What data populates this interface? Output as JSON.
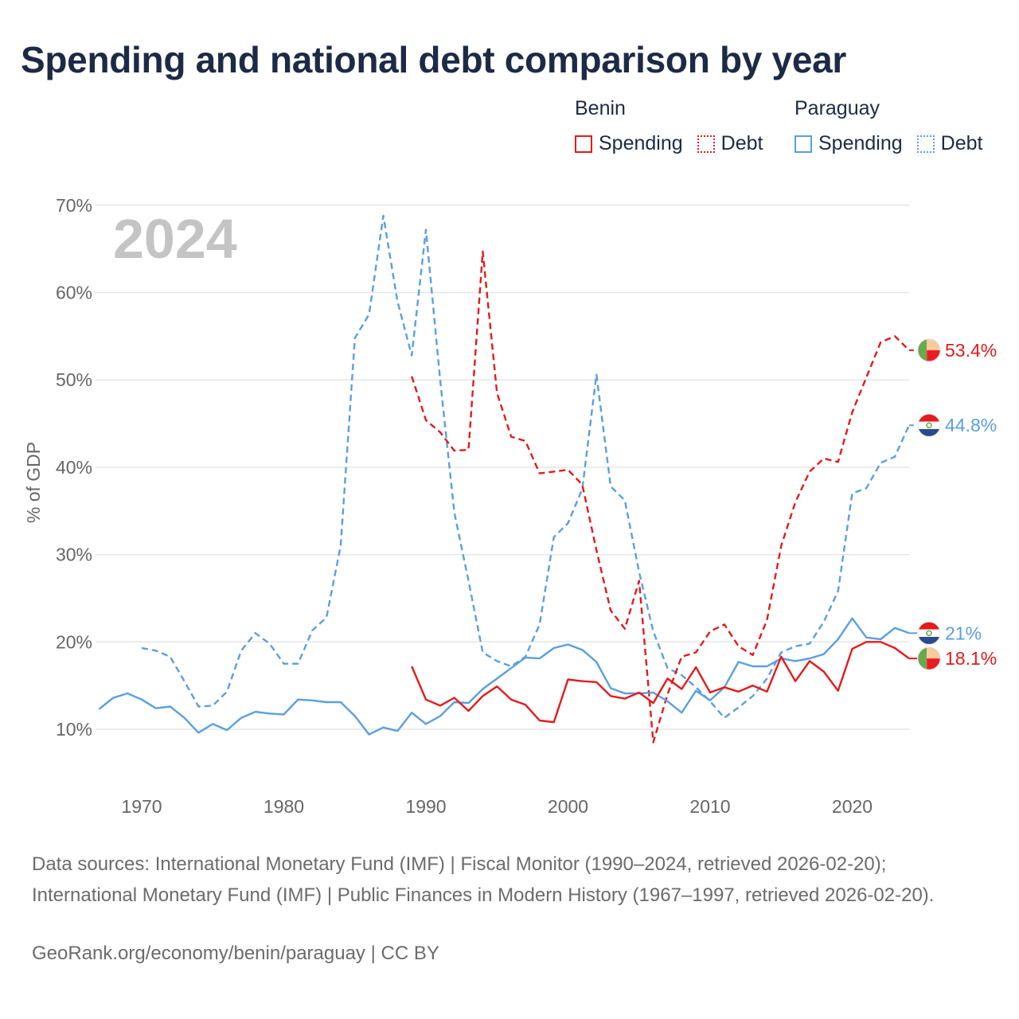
{
  "title": "Spending and national debt comparison by year",
  "legend": {
    "groups": [
      {
        "name": "Benin",
        "items": [
          {
            "label": "Spending",
            "style": "solid",
            "color": "#e41a1c"
          },
          {
            "label": "Debt",
            "style": "dotted",
            "color": "#e41a1c"
          }
        ]
      },
      {
        "name": "Paraguay",
        "items": [
          {
            "label": "Spending",
            "style": "solid",
            "color": "#5a9fe0"
          },
          {
            "label": "Debt",
            "style": "dotted",
            "color": "#5a9fe0"
          }
        ]
      }
    ]
  },
  "chart_data": {
    "type": "line",
    "title": "Spending and national debt comparison by year",
    "year_watermark": "2024",
    "ylabel": "% of GDP",
    "xlabel": "",
    "xlim": [
      1967,
      2024
    ],
    "ylim": [
      4,
      72
    ],
    "yticks": [
      10,
      20,
      30,
      40,
      50,
      60,
      70
    ],
    "ytick_labels": [
      "10%",
      "20%",
      "30%",
      "40%",
      "50%",
      "60%",
      "70%"
    ],
    "xticks": [
      1970,
      1980,
      1990,
      2000,
      2010,
      2020
    ],
    "xtick_labels": [
      "1970",
      "1980",
      "1990",
      "2000",
      "2010",
      "2020"
    ],
    "grid": true,
    "series": [
      {
        "name": "Paraguay Debt",
        "country": "Paraguay",
        "metric": "Debt",
        "color": "#5a9fe0",
        "dash": true,
        "end_label": "44.8%",
        "points": [
          [
            1970,
            19.3
          ],
          [
            1971,
            19.0
          ],
          [
            1972,
            18.3
          ],
          [
            1973,
            15.5
          ],
          [
            1974,
            12.6
          ],
          [
            1975,
            12.7
          ],
          [
            1976,
            14.3
          ],
          [
            1977,
            19.0
          ],
          [
            1978,
            21.0
          ],
          [
            1979,
            19.8
          ],
          [
            1980,
            17.5
          ],
          [
            1981,
            17.5
          ],
          [
            1982,
            21.3
          ],
          [
            1983,
            22.8
          ],
          [
            1984,
            31.0
          ],
          [
            1985,
            54.8
          ],
          [
            1986,
            57.5
          ],
          [
            1987,
            68.8
          ],
          [
            1988,
            59.0
          ],
          [
            1989,
            52.8
          ],
          [
            1990,
            67.2
          ],
          [
            1991,
            50.0
          ],
          [
            1992,
            34.8
          ],
          [
            1993,
            27.0
          ],
          [
            1994,
            18.8
          ],
          [
            1995,
            17.8
          ],
          [
            1996,
            17.2
          ],
          [
            1997,
            18.3
          ],
          [
            1998,
            22.0
          ],
          [
            1999,
            32.0
          ],
          [
            2000,
            33.6
          ],
          [
            2001,
            37.5
          ],
          [
            2002,
            50.6
          ],
          [
            2003,
            37.8
          ],
          [
            2004,
            36.2
          ],
          [
            2005,
            28.0
          ],
          [
            2006,
            21.2
          ],
          [
            2007,
            17.0
          ],
          [
            2008,
            16.2
          ],
          [
            2009,
            14.8
          ],
          [
            2010,
            13.2
          ],
          [
            2011,
            11.3
          ],
          [
            2012,
            12.5
          ],
          [
            2013,
            13.8
          ],
          [
            2014,
            15.8
          ],
          [
            2015,
            18.8
          ],
          [
            2016,
            19.5
          ],
          [
            2017,
            19.8
          ],
          [
            2018,
            22.3
          ],
          [
            2019,
            25.8
          ],
          [
            2020,
            37.0
          ],
          [
            2021,
            37.6
          ],
          [
            2022,
            40.5
          ],
          [
            2023,
            41.2
          ],
          [
            2024,
            44.8
          ]
        ]
      },
      {
        "name": "Benin Debt",
        "country": "Benin",
        "metric": "Debt",
        "color": "#e41a1c",
        "dash": true,
        "end_label": "53.4%",
        "points": [
          [
            1989,
            50.4
          ],
          [
            1990,
            45.4
          ],
          [
            1991,
            44.0
          ],
          [
            1992,
            41.9
          ],
          [
            1993,
            42.0
          ],
          [
            1994,
            64.7
          ],
          [
            1995,
            48.5
          ],
          [
            1996,
            43.5
          ],
          [
            1997,
            43.0
          ],
          [
            1998,
            39.3
          ],
          [
            1999,
            39.5
          ],
          [
            2000,
            39.7
          ],
          [
            2001,
            38.0
          ],
          [
            2002,
            30.5
          ],
          [
            2003,
            23.6
          ],
          [
            2004,
            21.5
          ],
          [
            2005,
            27.0
          ],
          [
            2006,
            8.5
          ],
          [
            2007,
            14.0
          ],
          [
            2008,
            18.3
          ],
          [
            2009,
            18.8
          ],
          [
            2010,
            21.2
          ],
          [
            2011,
            22.0
          ],
          [
            2012,
            19.5
          ],
          [
            2013,
            18.5
          ],
          [
            2014,
            22.5
          ],
          [
            2015,
            31.0
          ],
          [
            2016,
            36.0
          ],
          [
            2017,
            39.5
          ],
          [
            2018,
            41.0
          ],
          [
            2019,
            40.6
          ],
          [
            2020,
            46.3
          ],
          [
            2021,
            50.3
          ],
          [
            2022,
            54.3
          ],
          [
            2023,
            55.0
          ],
          [
            2024,
            53.4
          ]
        ]
      },
      {
        "name": "Paraguay Spending",
        "country": "Paraguay",
        "metric": "Spending",
        "color": "#5a9fe0",
        "dash": false,
        "end_label": "21%",
        "points": [
          [
            1967,
            12.3
          ],
          [
            1968,
            13.6
          ],
          [
            1969,
            14.1
          ],
          [
            1970,
            13.4
          ],
          [
            1971,
            12.4
          ],
          [
            1972,
            12.6
          ],
          [
            1973,
            11.3
          ],
          [
            1974,
            9.6
          ],
          [
            1975,
            10.6
          ],
          [
            1976,
            9.9
          ],
          [
            1977,
            11.3
          ],
          [
            1978,
            12.0
          ],
          [
            1979,
            11.8
          ],
          [
            1980,
            11.7
          ],
          [
            1981,
            13.4
          ],
          [
            1982,
            13.3
          ],
          [
            1983,
            13.1
          ],
          [
            1984,
            13.1
          ],
          [
            1985,
            11.5
          ],
          [
            1986,
            9.4
          ],
          [
            1987,
            10.2
          ],
          [
            1988,
            9.8
          ],
          [
            1989,
            11.9
          ],
          [
            1990,
            10.6
          ],
          [
            1991,
            11.5
          ],
          [
            1992,
            13.1
          ],
          [
            1993,
            13.0
          ],
          [
            1994,
            14.6
          ],
          [
            1995,
            15.8
          ],
          [
            1996,
            17.0
          ],
          [
            1997,
            18.2
          ],
          [
            1998,
            18.1
          ],
          [
            1999,
            19.3
          ],
          [
            2000,
            19.7
          ],
          [
            2001,
            19.1
          ],
          [
            2002,
            17.7
          ],
          [
            2003,
            14.7
          ],
          [
            2004,
            14.1
          ],
          [
            2005,
            14.1
          ],
          [
            2006,
            14.2
          ],
          [
            2007,
            13.2
          ],
          [
            2008,
            11.9
          ],
          [
            2009,
            14.4
          ],
          [
            2010,
            13.3
          ],
          [
            2011,
            14.8
          ],
          [
            2012,
            17.7
          ],
          [
            2013,
            17.2
          ],
          [
            2014,
            17.2
          ],
          [
            2015,
            18.1
          ],
          [
            2016,
            17.8
          ],
          [
            2017,
            18.1
          ],
          [
            2018,
            18.6
          ],
          [
            2019,
            20.3
          ],
          [
            2020,
            22.7
          ],
          [
            2021,
            20.5
          ],
          [
            2022,
            20.3
          ],
          [
            2023,
            21.6
          ],
          [
            2024,
            21.0
          ]
        ]
      },
      {
        "name": "Benin Spending",
        "country": "Benin",
        "metric": "Spending",
        "color": "#e41a1c",
        "dash": false,
        "end_label": "18.1%",
        "points": [
          [
            1989,
            17.2
          ],
          [
            1990,
            13.4
          ],
          [
            1991,
            12.7
          ],
          [
            1992,
            13.6
          ],
          [
            1993,
            12.1
          ],
          [
            1994,
            13.8
          ],
          [
            1995,
            14.9
          ],
          [
            1996,
            13.4
          ],
          [
            1997,
            12.8
          ],
          [
            1998,
            11.0
          ],
          [
            1999,
            10.8
          ],
          [
            2000,
            15.7
          ],
          [
            2001,
            15.5
          ],
          [
            2002,
            15.4
          ],
          [
            2003,
            13.8
          ],
          [
            2004,
            13.5
          ],
          [
            2005,
            14.2
          ],
          [
            2006,
            13.0
          ],
          [
            2007,
            15.8
          ],
          [
            2008,
            14.6
          ],
          [
            2009,
            17.1
          ],
          [
            2010,
            14.2
          ],
          [
            2011,
            14.8
          ],
          [
            2012,
            14.3
          ],
          [
            2013,
            15.0
          ],
          [
            2014,
            14.3
          ],
          [
            2015,
            18.3
          ],
          [
            2016,
            15.5
          ],
          [
            2017,
            17.8
          ],
          [
            2018,
            16.6
          ],
          [
            2019,
            14.4
          ],
          [
            2020,
            19.2
          ],
          [
            2021,
            20.0
          ],
          [
            2022,
            20.0
          ],
          [
            2023,
            19.3
          ],
          [
            2024,
            18.1
          ]
        ]
      }
    ],
    "end_markers": [
      {
        "series": "Benin Debt",
        "flag": "benin-flag",
        "label_y": 53.4
      },
      {
        "series": "Paraguay Debt",
        "flag": "paraguay-flag",
        "label_y": 44.8
      },
      {
        "series": "Paraguay Spending",
        "flag": "paraguay-flag",
        "label_y": 21.0
      },
      {
        "series": "Benin Spending",
        "flag": "benin-flag",
        "label_y": 18.1
      }
    ]
  },
  "footer": {
    "sources": "Data sources: International Monetary Fund (IMF) | Fiscal Monitor (1990–2024, retrieved 2026-02-20); International Monetary Fund (IMF) | Public Finances in Modern History (1967–1997, retrieved 2026-02-20).",
    "credit": "GeoRank.org/economy/benin/paraguay | CC BY"
  }
}
